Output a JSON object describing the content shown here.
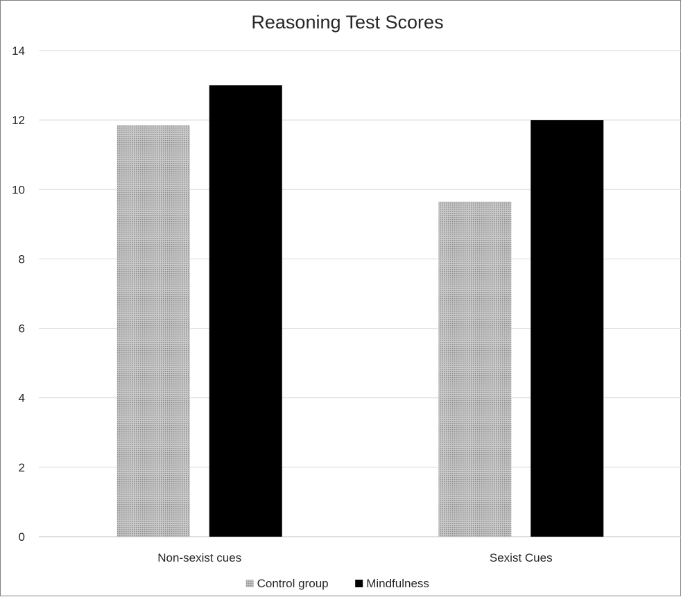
{
  "chart_data": {
    "type": "bar",
    "title": "Reasoning Test Scores",
    "categories": [
      "Non-sexist cues",
      "Sexist Cues"
    ],
    "series": [
      {
        "name": "Control group",
        "values": [
          11.85,
          9.65
        ],
        "color": "#b3b3b3",
        "pattern": "dotted-gray"
      },
      {
        "name": "Mindfulness",
        "values": [
          13,
          12
        ],
        "color": "#000000",
        "pattern": "solid"
      }
    ],
    "ylim": [
      0,
      14
    ],
    "yticks": [
      0,
      2,
      4,
      6,
      8,
      10,
      12,
      14
    ],
    "grid": true,
    "legend": "bottom-center",
    "xlabel": "",
    "ylabel": ""
  }
}
